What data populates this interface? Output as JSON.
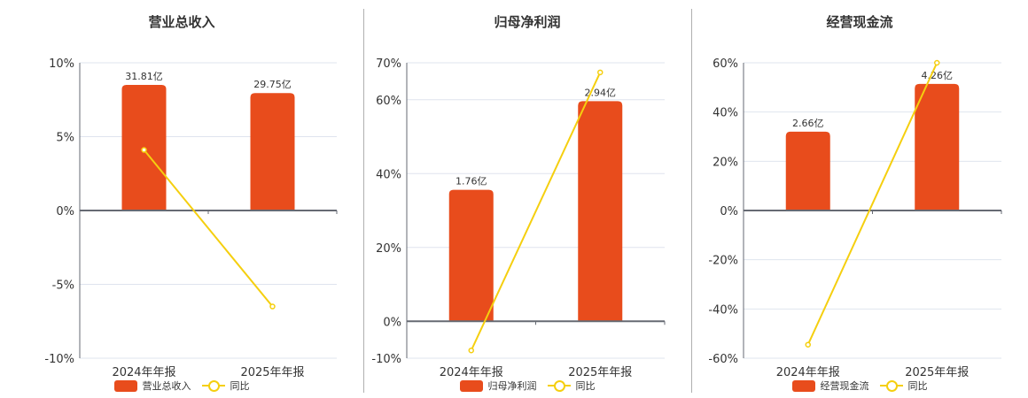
{
  "colors": {
    "bar": "#e84c1c",
    "line": "#f5cf0f",
    "grid": "#dfe4ee",
    "axis": "#666a73"
  },
  "categories": [
    "2024年年报",
    "2025年年报"
  ],
  "legend_line_label": "同比",
  "chart_data": [
    {
      "type": "bar+line",
      "title": "营业总收入",
      "categories": [
        "2024年年报",
        "2025年年报"
      ],
      "yticks": [
        "10%",
        "5%",
        "0%",
        "-5%",
        "-10%"
      ],
      "ylim": [
        -10,
        10
      ],
      "series": [
        {
          "name": "营业总收入",
          "type": "bar",
          "values": [
            8.5,
            7.95
          ],
          "labels": [
            "31.81亿",
            "29.75亿"
          ]
        },
        {
          "name": "同比",
          "type": "line",
          "values": [
            4.1,
            -6.5
          ]
        }
      ],
      "legend": [
        "营业总收入",
        "同比"
      ],
      "grid": true
    },
    {
      "type": "bar+line",
      "title": "归母净利润",
      "categories": [
        "2024年年报",
        "2025年年报"
      ],
      "yticks": [
        "70%",
        "60%",
        "40%",
        "20%",
        "0%",
        "-10%"
      ],
      "ylim": [
        -10,
        70
      ],
      "series": [
        {
          "name": "归母净利润",
          "type": "bar",
          "values": [
            35.6,
            59.6
          ],
          "labels": [
            "1.76亿",
            "2.94亿"
          ]
        },
        {
          "name": "同比",
          "type": "line",
          "values": [
            -7.9,
            67.4
          ]
        }
      ],
      "legend": [
        "归母净利润",
        "同比"
      ],
      "grid": true
    },
    {
      "type": "bar+line",
      "title": "经营现金流",
      "categories": [
        "2024年年报",
        "2025年年报"
      ],
      "yticks": [
        "60%",
        "40%",
        "20%",
        "0%",
        "-20%",
        "-40%",
        "-60%"
      ],
      "ylim": [
        -60,
        60
      ],
      "series": [
        {
          "name": "经营现金流",
          "type": "bar",
          "values": [
            32.0,
            51.4
          ],
          "labels": [
            "2.66亿",
            "4.26亿"
          ]
        },
        {
          "name": "同比",
          "type": "line",
          "values": [
            -54.5,
            60.0
          ]
        }
      ],
      "legend": [
        "经营现金流",
        "同比"
      ],
      "grid": true
    }
  ]
}
